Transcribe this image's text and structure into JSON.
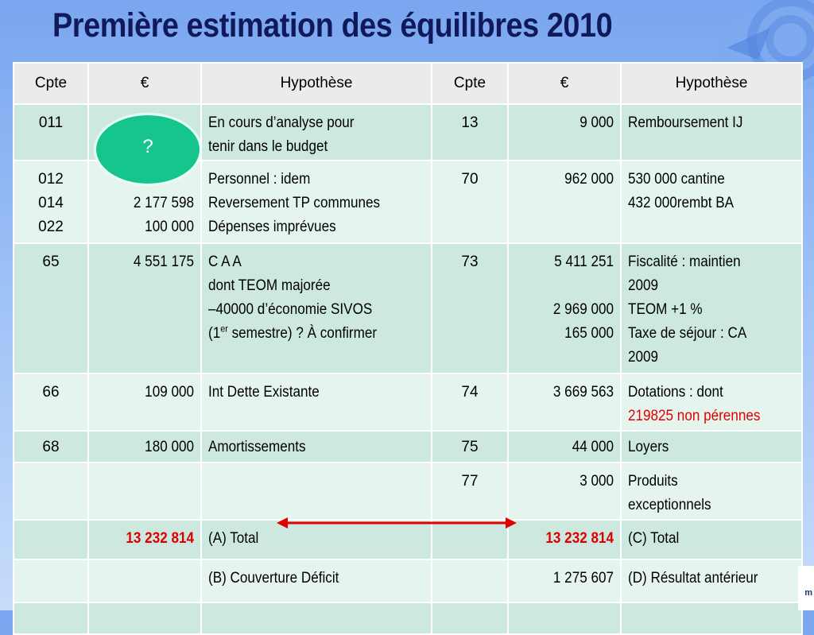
{
  "title": "Première estimation des équilibres  2010",
  "headers": [
    "Cpte",
    "€",
    "Hypothèse",
    "Cpte",
    "€",
    "Hypothèse"
  ],
  "rows": [
    {
      "cpte1": [
        "011"
      ],
      "eur1": [],
      "hyp1": [
        "En cours d’analyse pour",
        "tenir dans le budget"
      ],
      "cpte2": [
        "13"
      ],
      "eur2": [
        "9 000"
      ],
      "hyp2": [
        "Remboursement IJ"
      ]
    },
    {
      "cpte1": [
        "012",
        "014",
        "022"
      ],
      "eur1": [
        "",
        "2 177 598",
        "100 000"
      ],
      "hyp1": [
        "Personnel : idem",
        "Reversement TP communes",
        "Dépenses imprévues"
      ],
      "cpte2": [
        "70"
      ],
      "eur2": [
        "962 000"
      ],
      "hyp2": [
        "530 000 cantine",
        "432 000rembt BA"
      ]
    },
    {
      "cpte1": [
        "65"
      ],
      "eur1": [
        "4 551 175"
      ],
      "hyp1": [
        "C A A",
        "dont TEOM majorée",
        "–40000 d’économie SIVOS"
      ],
      "hyp1_last": {
        "pre": "(1",
        "sup": "er",
        "post": " semestre) ? À confirmer"
      },
      "cpte2": [
        "73"
      ],
      "eur2": [
        "5 411 251",
        "",
        "2 969 000",
        "165 000"
      ],
      "hyp2": [
        "Fiscalité : maintien",
        "2009",
        "TEOM +1 %",
        "Taxe de séjour : CA",
        "2009"
      ]
    },
    {
      "cpte1": [
        "66"
      ],
      "eur1": [
        "109 000"
      ],
      "hyp1": [
        "Int  Dette Existante"
      ],
      "cpte2": [
        "74"
      ],
      "eur2": [
        "3 669 563"
      ],
      "hyp2": [
        "Dotations : dont"
      ],
      "hyp2_red": "219825 non pérennes"
    },
    {
      "cpte1": [
        "68"
      ],
      "eur1": [
        "180 000"
      ],
      "hyp1": [
        "Amortissements"
      ],
      "cpte2": [
        "75"
      ],
      "eur2": [
        "44 000"
      ],
      "hyp2": [
        "Loyers"
      ]
    },
    {
      "cpte1": [],
      "eur1": [],
      "hyp1": [],
      "cpte2": [
        "77"
      ],
      "eur2": [
        "3 000"
      ],
      "hyp2": [
        "Produits",
        "exceptionnels"
      ]
    },
    {
      "cpte1": [],
      "eur1_red": "13 232 814",
      "hyp1": [
        "(A) Total"
      ],
      "cpte2": [],
      "eur2_red": "13 232 814",
      "hyp2": [
        "(C) Total"
      ]
    },
    {
      "cpte1": [],
      "eur1": [],
      "hyp1": [
        "(B)  Couverture Déficit"
      ],
      "cpte2": [],
      "eur2": [
        "1 275 607"
      ],
      "hyp2": [
        "(D) Résultat antérieur"
      ]
    },
    {
      "cpte1": [],
      "eur1": [],
      "hyp1": [],
      "cpte2": [],
      "eur2": [],
      "hyp2": []
    }
  ],
  "oval_label": "?",
  "logo_fragment": "m",
  "colors": {
    "title": "#101a5a",
    "header_bg": "#e9ecea",
    "row_dark": "#cde9df",
    "row_light": "#e6f4ee",
    "oval": "#16c48e",
    "red": "#e00000",
    "background": "#8fb4f3"
  }
}
